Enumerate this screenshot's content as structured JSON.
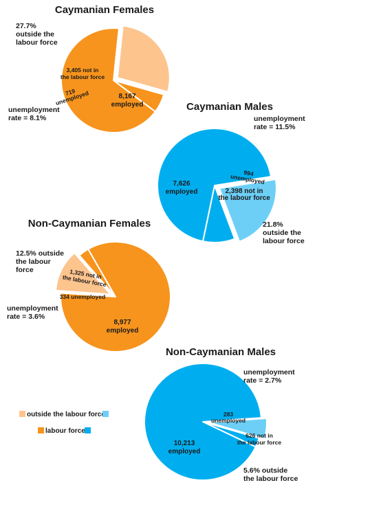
{
  "colors": {
    "fem_outside": "#fdc48e",
    "fem_labour": "#f7941d",
    "male_outside": "#6dcff6",
    "male_labour": "#00aeef",
    "edge": "#ffffff"
  },
  "legend": {
    "outside_label": "outside the labour force",
    "labour_label": "labour force"
  },
  "chart_data": [
    {
      "type": "pie",
      "title": "Caymanian Females",
      "slices": [
        {
          "category": "not in the labour force",
          "value": 3405,
          "label": "3,405 not in the labour force",
          "group": "outside"
        },
        {
          "category": "unemployed",
          "value": 719,
          "label": "719 unemployed",
          "group": "labour"
        },
        {
          "category": "employed",
          "value": 8167,
          "label": "8,167 employed",
          "group": "labour"
        }
      ],
      "annotations": {
        "outside_pct": "27.7% outside the labour force",
        "unemployment_rate": "unemployment rate = 8.1%"
      }
    },
    {
      "type": "pie",
      "title": "Caymanian Males",
      "slices": [
        {
          "category": "not in the labour force",
          "value": 2398,
          "label": "2,398 not in the labour force",
          "group": "outside"
        },
        {
          "category": "unemployed",
          "value": 994,
          "label": "994 unemployed",
          "group": "labour"
        },
        {
          "category": "employed",
          "value": 7626,
          "label": "7,626 employed",
          "group": "labour"
        }
      ],
      "annotations": {
        "outside_pct": "21.8% outside the labour force",
        "unemployment_rate": "unemployment rate = 11.5%"
      }
    },
    {
      "type": "pie",
      "title": "Non-Caymanian Females",
      "slices": [
        {
          "category": "not in the labour force",
          "value": 1325,
          "label": "1,325 not in the labour force",
          "group": "outside"
        },
        {
          "category": "unemployed",
          "value": 334,
          "label": "334 unemployed",
          "group": "labour"
        },
        {
          "category": "employed",
          "value": 8977,
          "label": "8,977 employed",
          "group": "labour"
        }
      ],
      "annotations": {
        "outside_pct": "12.5% outside the labour force",
        "unemployment_rate": "unemployment rate = 3.6%"
      }
    },
    {
      "type": "pie",
      "title": "Non-Caymanian Males",
      "slices": [
        {
          "category": "not in the labour force",
          "value": 626,
          "label": "626 not in the labour force",
          "group": "outside"
        },
        {
          "category": "unemployed",
          "value": 283,
          "label": "283 unemployed",
          "group": "labour"
        },
        {
          "category": "employed",
          "value": 10213,
          "label": "10,213 employed",
          "group": "labour"
        }
      ],
      "annotations": {
        "outside_pct": "5.6% outside the labour force",
        "unemployment_rate": "unemployment rate = 2.7%"
      }
    }
  ]
}
